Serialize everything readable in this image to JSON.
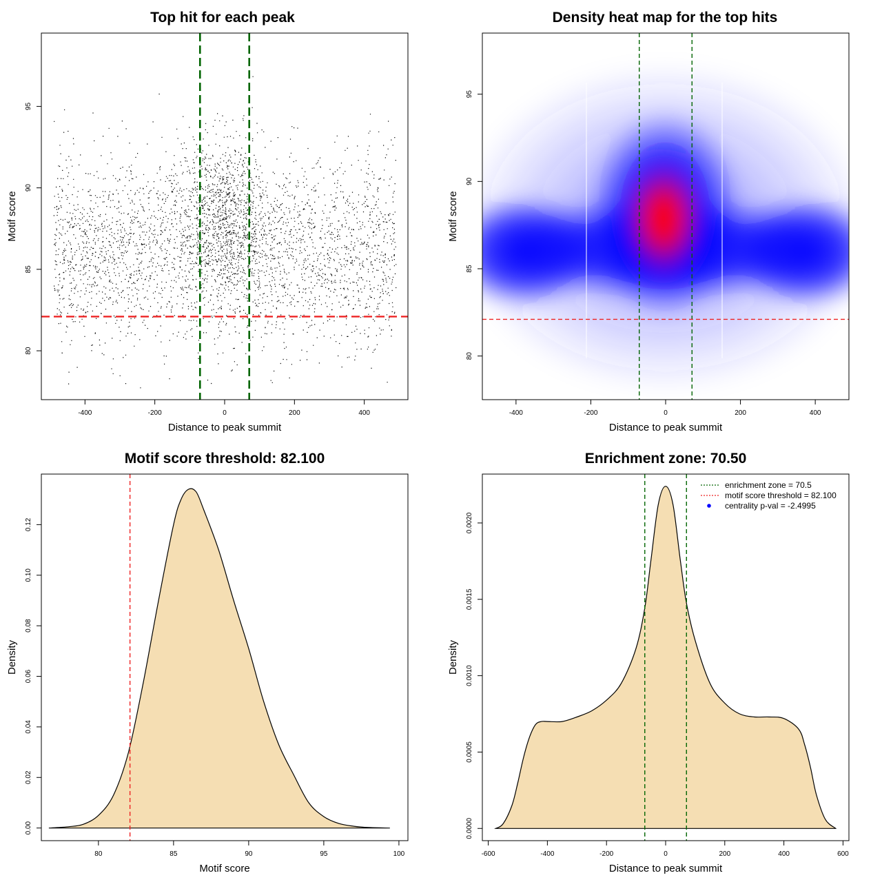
{
  "colors": {
    "green_line": "#006400",
    "red_line": "#ee2222",
    "density_fill": "#f5deb3",
    "heat_blue": "#0000ff",
    "heat_red": "#ff0000"
  },
  "chart_data": [
    {
      "id": "scatter",
      "type": "scatter",
      "title": "Top hit for each peak",
      "xlabel": "Distance to peak summit",
      "ylabel": "Motif score",
      "xlim": [
        -525,
        525
      ],
      "ylim": [
        77,
        99.5
      ],
      "xticks": [
        -400,
        -200,
        0,
        200,
        400
      ],
      "xtick_labels": [
        "-400",
        "-200",
        "0",
        "200",
        "400"
      ],
      "yticks": [
        80,
        85,
        90,
        95
      ],
      "ytick_labels": [
        "80",
        "85",
        "90",
        "95"
      ],
      "vlines": [
        -70.5,
        70.5
      ],
      "hline": 82.1,
      "points_description_n": 9000,
      "x_range": [
        -490,
        490
      ],
      "score_range": [
        77.6,
        98.3
      ]
    },
    {
      "id": "heatmap",
      "type": "heatmap",
      "title": "Density heat map for the top hits",
      "xlabel": "Distance to peak summit",
      "ylabel": "Motif score",
      "xlim": [
        -490,
        490
      ],
      "ylim": [
        77.5,
        98.5
      ],
      "xticks": [
        -400,
        -200,
        0,
        200,
        400
      ],
      "xtick_labels": [
        "-400",
        "-200",
        "0",
        "200",
        "400"
      ],
      "yticks": [
        80,
        85,
        90,
        95
      ],
      "ytick_labels": [
        "80",
        "85",
        "90",
        "95"
      ],
      "vlines": [
        -70.5,
        70.5
      ],
      "hline": 82.1,
      "hotspot": {
        "x": 0,
        "y": 87.8
      }
    },
    {
      "id": "score_density",
      "type": "area",
      "title": "Motif score threshold: 82.100",
      "xlabel": "Motif score",
      "ylabel": "Density",
      "xlim": [
        76.2,
        100.6
      ],
      "ylim": [
        -0.005,
        0.14
      ],
      "xticks": [
        80,
        85,
        90,
        95,
        100
      ],
      "xtick_labels": [
        "80",
        "85",
        "90",
        "95",
        "100"
      ],
      "yticks": [
        0,
        0.02,
        0.04,
        0.06,
        0.08,
        0.1,
        0.12
      ],
      "ytick_labels": [
        "0.00",
        "0.02",
        "0.04",
        "0.06",
        "0.08",
        "0.10",
        "0.12"
      ],
      "vline": 82.1,
      "x": [
        76.7,
        78,
        79,
        80,
        81,
        82,
        83,
        84,
        85,
        85.5,
        86,
        86.5,
        87,
        88,
        89,
        90,
        91,
        92,
        93,
        94,
        95,
        96,
        97,
        98,
        99.4
      ],
      "y": [
        0,
        0.0005,
        0.0015,
        0.005,
        0.013,
        0.03,
        0.058,
        0.09,
        0.12,
        0.13,
        0.134,
        0.133,
        0.126,
        0.11,
        0.09,
        0.071,
        0.05,
        0.033,
        0.021,
        0.01,
        0.0045,
        0.0018,
        0.0007,
        0.0002,
        0
      ]
    },
    {
      "id": "distance_density",
      "type": "area",
      "title": "Enrichment zone: 70.50",
      "xlabel": "Distance to peak summit",
      "ylabel": "Density",
      "xlim": [
        -620,
        620
      ],
      "ylim": [
        -8e-05,
        0.00232
      ],
      "xticks": [
        -600,
        -400,
        -200,
        0,
        200,
        400,
        600
      ],
      "xtick_labels": [
        "-600",
        "-400",
        "-200",
        "0",
        "200",
        "400",
        "600"
      ],
      "yticks": [
        0,
        0.0005,
        0.001,
        0.0015,
        0.002
      ],
      "ytick_labels": [
        "0.0000",
        "0.0005",
        "0.0010",
        "0.0015",
        "0.0020"
      ],
      "vlines": [
        -70.5,
        70.5
      ],
      "x": [
        -575,
        -550,
        -520,
        -500,
        -480,
        -460,
        -440,
        -420,
        -400,
        -350,
        -300,
        -250,
        -200,
        -150,
        -100,
        -70,
        -50,
        -25,
        0,
        25,
        50,
        70,
        100,
        150,
        200,
        250,
        300,
        350,
        400,
        450,
        470,
        490,
        510,
        540,
        575
      ],
      "y": [
        0,
        3e-05,
        0.00015,
        0.0003,
        0.00047,
        0.0006,
        0.00068,
        0.0007,
        0.0007,
        0.0007,
        0.00073,
        0.00077,
        0.00084,
        0.00095,
        0.00118,
        0.00145,
        0.00175,
        0.00212,
        0.00224,
        0.00212,
        0.00175,
        0.00148,
        0.00123,
        0.00095,
        0.00082,
        0.00075,
        0.00073,
        0.00073,
        0.00072,
        0.00065,
        0.00055,
        0.0004,
        0.00022,
        6e-05,
        0
      ],
      "legend": {
        "position": "top-right",
        "entries": [
          "enrichment zone = 70.5",
          "motif score threshold = 82.100",
          "centrality p-val = -2.4995"
        ]
      }
    }
  ]
}
